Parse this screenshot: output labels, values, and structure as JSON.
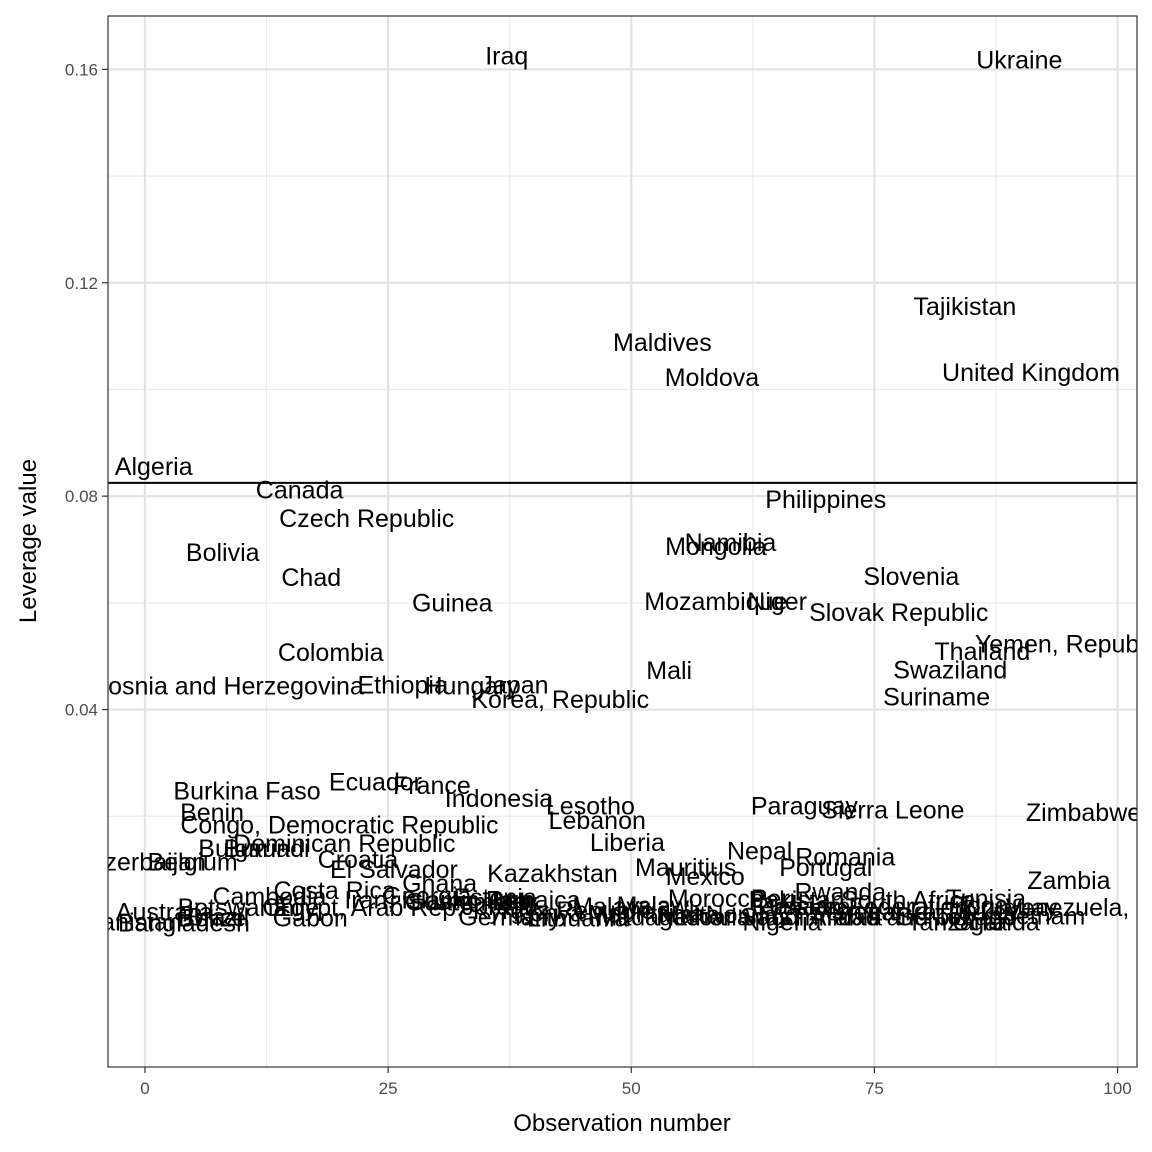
{
  "chart_data": {
    "type": "scatter",
    "title": "",
    "xlabel": "Observation number",
    "ylabel": "Leverage value",
    "xlim": [
      -3.8,
      102
    ],
    "ylim": [
      -0.027,
      0.17
    ],
    "x_ticks": [
      0,
      25,
      50,
      75,
      100
    ],
    "x_tick_labels": [
      "0",
      "25",
      "50",
      "75",
      "100"
    ],
    "y_ticks": [
      0.04,
      0.08,
      0.12,
      0.16
    ],
    "y_tick_labels": [
      "0.04",
      "0.08",
      "0.12",
      "0.16"
    ],
    "grid": true,
    "reference_line_y": 0.0825,
    "points": [
      {
        "label": "Afghanistan",
        "x": -3.0,
        "y": 0.0001
      },
      {
        "label": "Algeria",
        "x": 0.9,
        "y": 0.0855
      },
      {
        "label": "Australia",
        "x": 2.0,
        "y": 0.002
      },
      {
        "label": "Azerbaijan",
        "x": 0.2,
        "y": 0.0113
      },
      {
        "label": "Bangladesh",
        "x": 4.0,
        "y": -0.0001
      },
      {
        "label": "Belgium",
        "x": 4.9,
        "y": 0.0113
      },
      {
        "label": "Belize",
        "x": 6.9,
        "y": 0.0008
      },
      {
        "label": "Benin",
        "x": 6.9,
        "y": 0.0206
      },
      {
        "label": "Bolivia",
        "x": 8.0,
        "y": 0.0693
      },
      {
        "label": "Bosnia and Herzegovina",
        "x": 8.5,
        "y": 0.0443
      },
      {
        "label": "Botswana",
        "x": 9.0,
        "y": 0.0028
      },
      {
        "label": "Brazil",
        "x": 7.5,
        "y": 0.001
      },
      {
        "label": "Bulgaria",
        "x": 10.2,
        "y": 0.0139
      },
      {
        "label": "Burkina Faso",
        "x": 10.5,
        "y": 0.0246
      },
      {
        "label": "Burundi",
        "x": 12.5,
        "y": 0.0139
      },
      {
        "label": "Cambodia",
        "x": 12.8,
        "y": 0.0049
      },
      {
        "label": "Canada",
        "x": 15.9,
        "y": 0.0811
      },
      {
        "label": "Chad",
        "x": 17.1,
        "y": 0.0647
      },
      {
        "label": "Chile",
        "x": 15.0,
        "y": 0.0028
      },
      {
        "label": "Colombia",
        "x": 19.1,
        "y": 0.0506
      },
      {
        "label": "Congo, Democratic Republic",
        "x": 20.0,
        "y": 0.0183
      },
      {
        "label": "Costa Rica",
        "x": 19.5,
        "y": 0.006
      },
      {
        "label": "Croatia",
        "x": 21.9,
        "y": 0.0118
      },
      {
        "label": "Czech Republic",
        "x": 22.8,
        "y": 0.0757
      },
      {
        "label": "Dominican Republic",
        "x": 20.5,
        "y": 0.0148
      },
      {
        "label": "Ecuador",
        "x": 23.7,
        "y": 0.0263
      },
      {
        "label": "Egypt, Arab Rep.",
        "x": 23.0,
        "y": 0.0028
      },
      {
        "label": "El Salvador",
        "x": 25.6,
        "y": 0.0099
      },
      {
        "label": "Estonia",
        "x": 36.0,
        "y": 0.0047
      },
      {
        "label": "Ethiopia",
        "x": 26.5,
        "y": 0.0445
      },
      {
        "label": "France",
        "x": 29.5,
        "y": 0.0257
      },
      {
        "label": "Gabon",
        "x": 17.0,
        "y": 0.0008
      },
      {
        "label": "Georgia",
        "x": 29.0,
        "y": 0.005
      },
      {
        "label": "Germany",
        "x": 37.5,
        "y": 0.001
      },
      {
        "label": "Ghana",
        "x": 30.3,
        "y": 0.0073
      },
      {
        "label": "Guatemala",
        "x": 33.0,
        "y": 0.0038
      },
      {
        "label": "Guinea",
        "x": 31.6,
        "y": 0.0599
      },
      {
        "label": "Hungary",
        "x": 33.6,
        "y": 0.0443
      },
      {
        "label": "Indonesia",
        "x": 36.4,
        "y": 0.0232
      },
      {
        "label": "Iran, Islamic Rep.",
        "x": 30.5,
        "y": 0.0042
      },
      {
        "label": "Iraq",
        "x": 37.2,
        "y": 0.1624
      },
      {
        "label": "Italy",
        "x": 38.0,
        "y": 0.0038
      },
      {
        "label": "Jamaica",
        "x": 40.0,
        "y": 0.0042
      },
      {
        "label": "Japan",
        "x": 38.0,
        "y": 0.0445
      },
      {
        "label": "Jordan",
        "x": 36.5,
        "y": 0.003
      },
      {
        "label": "Kazakhstan",
        "x": 41.9,
        "y": 0.0092
      },
      {
        "label": "Kenya",
        "x": 41.5,
        "y": 0.0018
      },
      {
        "label": "Korea, Republic",
        "x": 42.7,
        "y": 0.0418
      },
      {
        "label": "Kyrgyz Republic",
        "x": 43.0,
        "y": 0.0022
      },
      {
        "label": "Lebanon",
        "x": 46.5,
        "y": 0.0191
      },
      {
        "label": "Lesotho",
        "x": 45.8,
        "y": 0.0218
      },
      {
        "label": "Liberia",
        "x": 49.6,
        "y": 0.015
      },
      {
        "label": "Lithuania",
        "x": 44.5,
        "y": 0.0008
      },
      {
        "label": "Madagascar",
        "x": 53.5,
        "y": 0.001
      },
      {
        "label": "Malawi",
        "x": 52.5,
        "y": 0.0032
      },
      {
        "label": "Malaysia",
        "x": 49.0,
        "y": 0.003
      },
      {
        "label": "Maldives",
        "x": 53.2,
        "y": 0.1087
      },
      {
        "label": "Mali",
        "x": 53.9,
        "y": 0.0472
      },
      {
        "label": "Malta",
        "x": 56.0,
        "y": 0.0015
      },
      {
        "label": "Mauritania",
        "x": 51.5,
        "y": 0.0016
      },
      {
        "label": "Mauritius",
        "x": 55.6,
        "y": 0.0103
      },
      {
        "label": "Mexico",
        "x": 57.6,
        "y": 0.0086
      },
      {
        "label": "Moldova",
        "x": 58.3,
        "y": 0.1021
      },
      {
        "label": "Mongolia",
        "x": 58.7,
        "y": 0.0705
      },
      {
        "label": "Morocco",
        "x": 58.7,
        "y": 0.0045
      },
      {
        "label": "Mozambique",
        "x": 58.7,
        "y": 0.0602
      },
      {
        "label": "Namibia",
        "x": 60.2,
        "y": 0.0712
      },
      {
        "label": "Nepal",
        "x": 63.2,
        "y": 0.0134
      },
      {
        "label": "Netherlands",
        "x": 59.5,
        "y": 0.001
      },
      {
        "label": "Niger",
        "x": 65.0,
        "y": 0.0602
      },
      {
        "label": "Nigeria",
        "x": 65.5,
        "y": 0.0001
      },
      {
        "label": "Norway",
        "x": 62.0,
        "y": 0.0015
      },
      {
        "label": "Pakistan",
        "x": 67.0,
        "y": 0.0042
      },
      {
        "label": "Panama",
        "x": 67.8,
        "y": 0.003
      },
      {
        "label": "Paraguay",
        "x": 67.8,
        "y": 0.0218
      },
      {
        "label": "Peru",
        "x": 65.0,
        "y": 0.0045
      },
      {
        "label": "Philippines",
        "x": 70.0,
        "y": 0.0793
      },
      {
        "label": "Portugal",
        "x": 70.0,
        "y": 0.0103
      },
      {
        "label": "Romania",
        "x": 72.0,
        "y": 0.0123
      },
      {
        "label": "Russian Federation",
        "x": 73.5,
        "y": 0.003
      },
      {
        "label": "Rwanda",
        "x": 71.5,
        "y": 0.0057
      },
      {
        "label": "Saudi Arabia",
        "x": 68.5,
        "y": 0.001
      },
      {
        "label": "Senegal",
        "x": 73.0,
        "y": 0.002
      },
      {
        "label": "Serbia",
        "x": 81.0,
        "y": 0.001
      },
      {
        "label": "Sierra Leone",
        "x": 76.9,
        "y": 0.0211
      },
      {
        "label": "Slovak Republic",
        "x": 77.5,
        "y": 0.0581
      },
      {
        "label": "Slovenia",
        "x": 78.8,
        "y": 0.0648
      },
      {
        "label": "South Africa",
        "x": 78.5,
        "y": 0.0042
      },
      {
        "label": "Sri Lanka",
        "x": 76.0,
        "y": 0.002
      },
      {
        "label": "Suriname",
        "x": 81.4,
        "y": 0.0423
      },
      {
        "label": "Swaziland",
        "x": 82.8,
        "y": 0.0473
      },
      {
        "label": "Tajikistan",
        "x": 84.3,
        "y": 0.1155
      },
      {
        "label": "Tanzania",
        "x": 83.5,
        "y": 0.0001
      },
      {
        "label": "Thailand",
        "x": 86.1,
        "y": 0.0508
      },
      {
        "label": "Togo",
        "x": 86.0,
        "y": 0.0032
      },
      {
        "label": "Trinidad and Tobago",
        "x": 78.0,
        "y": 0.001
      },
      {
        "label": "Tunisia",
        "x": 86.5,
        "y": 0.0045
      },
      {
        "label": "Turkey",
        "x": 86.0,
        "y": 0.002
      },
      {
        "label": "Uganda",
        "x": 87.5,
        "y": 0.0001
      },
      {
        "label": "Ukraine",
        "x": 89.9,
        "y": 0.1617
      },
      {
        "label": "United Kingdom",
        "x": 91.1,
        "y": 0.1031
      },
      {
        "label": "Uruguay",
        "x": 89.0,
        "y": 0.0028
      },
      {
        "label": "Venezuela, RB",
        "x": 97.0,
        "y": 0.0028
      },
      {
        "label": "Vietnam",
        "x": 92.0,
        "y": 0.0012
      },
      {
        "label": "Yemen, Republic",
        "x": 95.0,
        "y": 0.0522
      },
      {
        "label": "Zambia",
        "x": 95.0,
        "y": 0.0079
      },
      {
        "label": "Zimbabwe",
        "x": 96.5,
        "y": 0.0206
      }
    ]
  }
}
